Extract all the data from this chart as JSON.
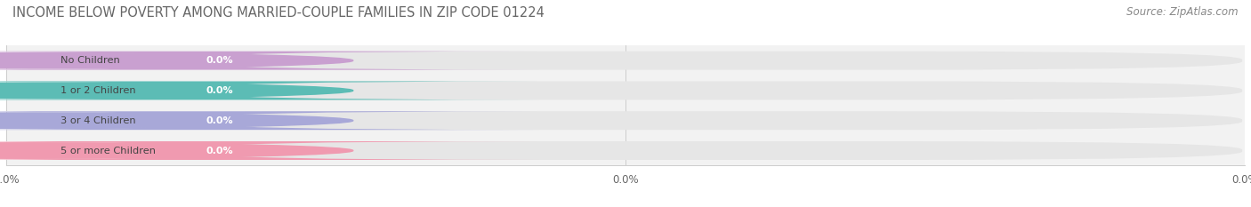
{
  "title": "INCOME BELOW POVERTY AMONG MARRIED-COUPLE FAMILIES IN ZIP CODE 01224",
  "source": "Source: ZipAtlas.com",
  "categories": [
    "No Children",
    "1 or 2 Children",
    "3 or 4 Children",
    "5 or more Children"
  ],
  "values": [
    0.0,
    0.0,
    0.0,
    0.0
  ],
  "bar_colors": [
    "#c9a0d0",
    "#5cbcb5",
    "#a8a8d8",
    "#f09ab0"
  ],
  "background_color": "#ffffff",
  "plot_bg_color": "#f2f2f2",
  "title_fontsize": 10.5,
  "source_fontsize": 8.5,
  "bar_bg_color": "#e6e6e6",
  "white_label_bg": "#ffffff"
}
